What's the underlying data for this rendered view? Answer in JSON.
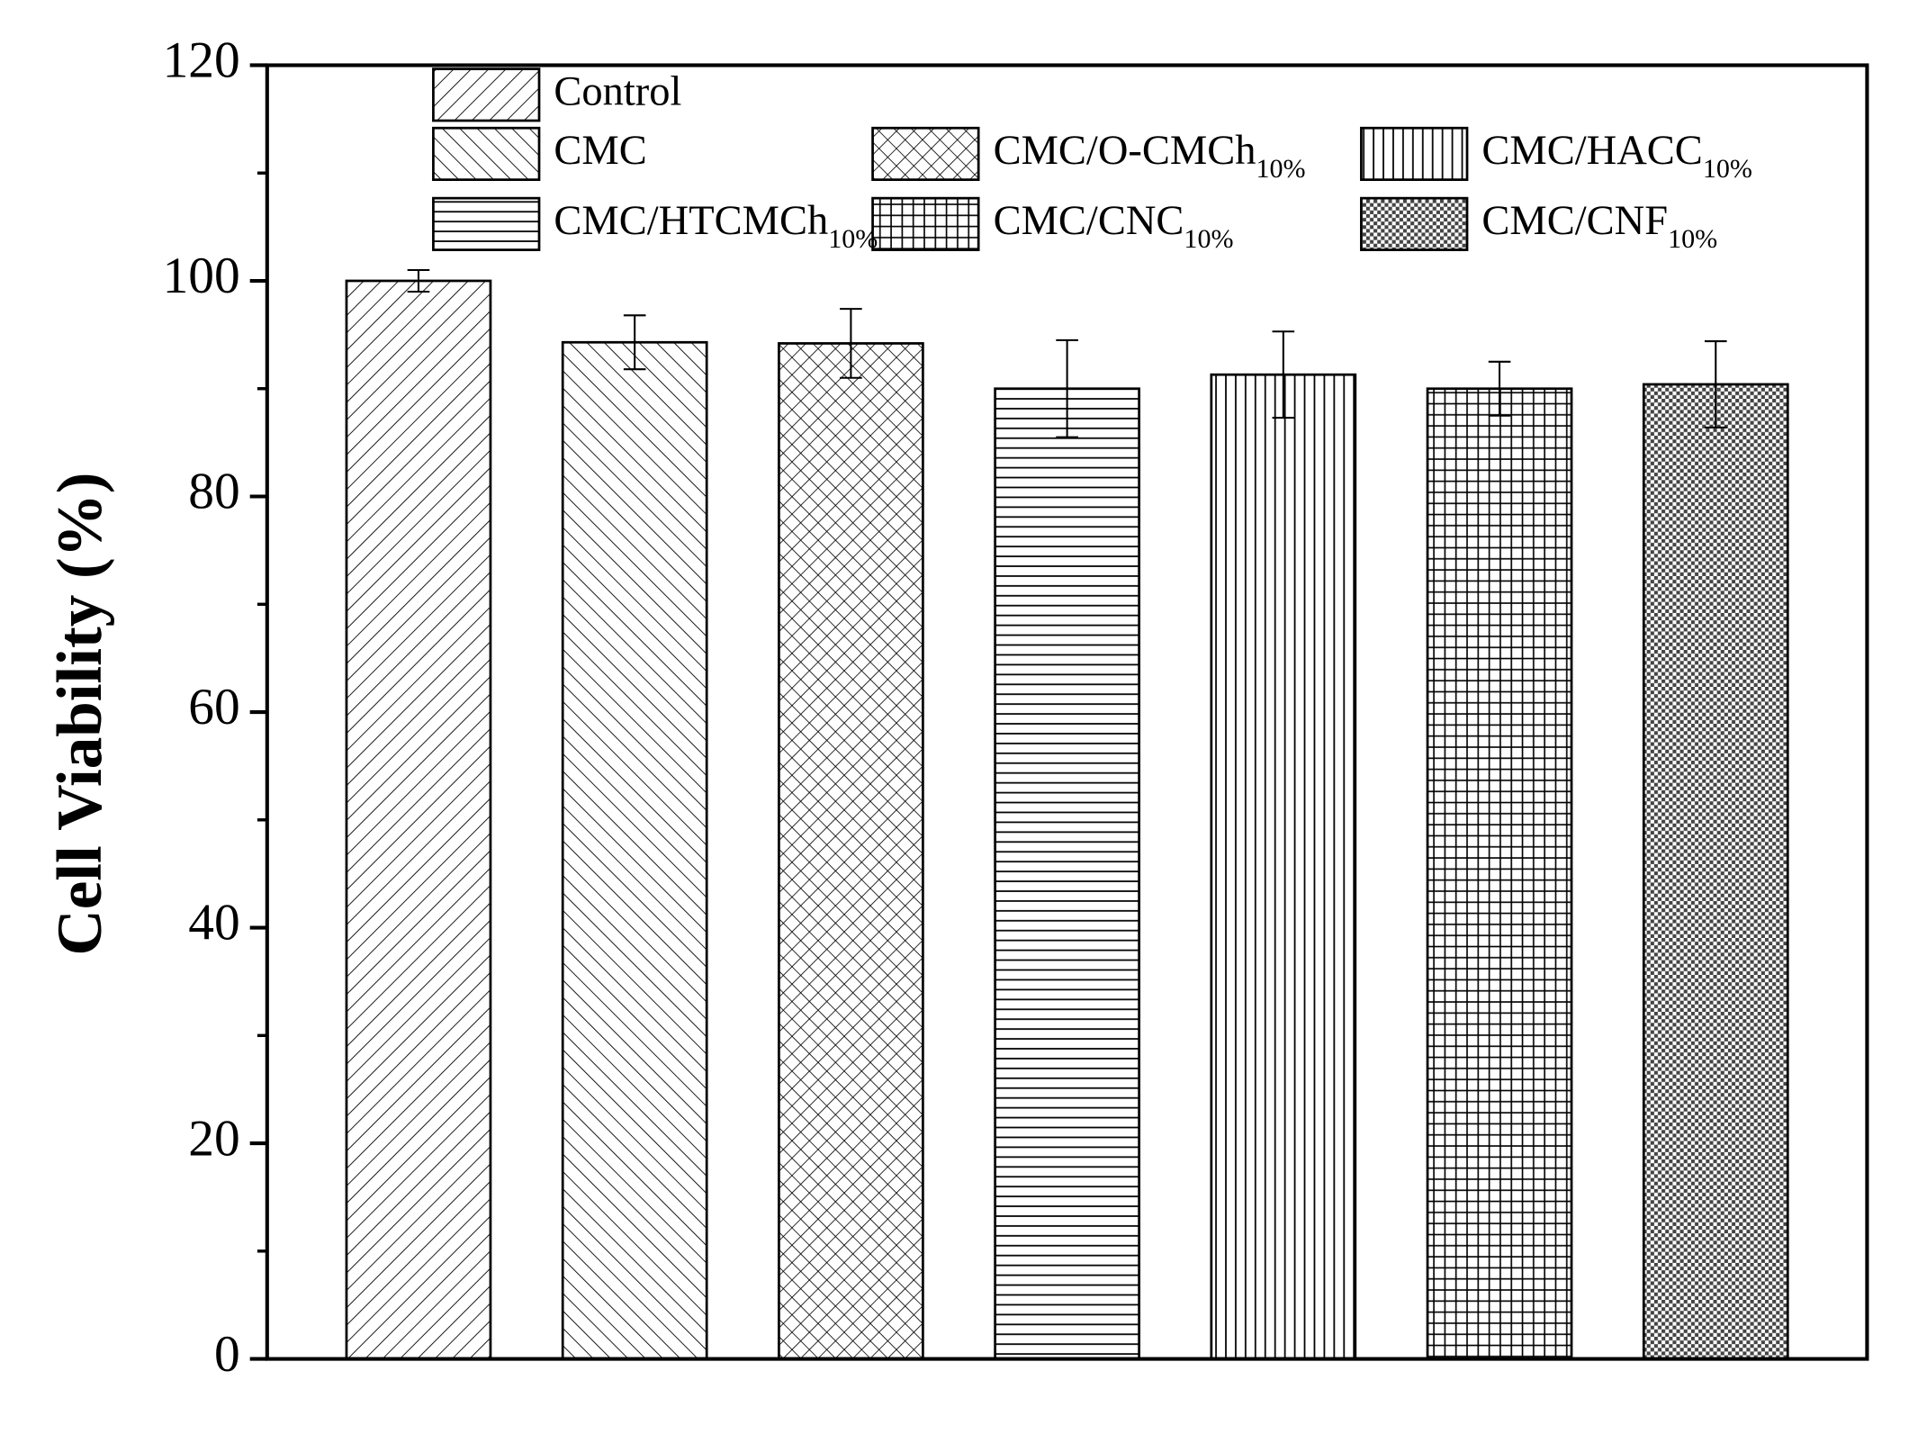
{
  "chart_data": {
    "type": "bar",
    "y_label": "Cell Viability (%)",
    "ylim": [
      0,
      120
    ],
    "yticks": [
      0,
      20,
      40,
      60,
      80,
      100,
      120
    ],
    "series": [
      {
        "name": "Control",
        "pattern": "diagonal",
        "color": "#000000",
        "values": [
          100
        ],
        "errors": [
          1.0
        ]
      },
      {
        "name": "CMC",
        "pattern": "back-diagonal",
        "color": "#000000",
        "values": [
          94.3
        ],
        "errors": [
          2.5
        ]
      },
      {
        "name": "CMC/O-CMCh",
        "subscript": "10%",
        "pattern": "crosshatch",
        "color": "#000000",
        "values": [
          94.2
        ],
        "errors": [
          3.2
        ]
      },
      {
        "name": "CMC/HTCMCh",
        "subscript": "10%",
        "pattern": "horizontal",
        "color": "#000000",
        "values": [
          90.0
        ],
        "errors": [
          4.5
        ]
      },
      {
        "name": "CMC/HACC",
        "subscript": "10%",
        "pattern": "vertical",
        "color": "#000000",
        "values": [
          91.3
        ],
        "errors": [
          4.0
        ]
      },
      {
        "name": "CMC/CNC",
        "subscript": "10%",
        "pattern": "grid",
        "color": "#000000",
        "values": [
          90.0
        ],
        "errors": [
          2.5
        ]
      },
      {
        "name": "CMC/CNF",
        "subscript": "10%",
        "pattern": "dots",
        "color": "#000000",
        "values": [
          90.4
        ],
        "errors": [
          4.0
        ]
      }
    ]
  }
}
